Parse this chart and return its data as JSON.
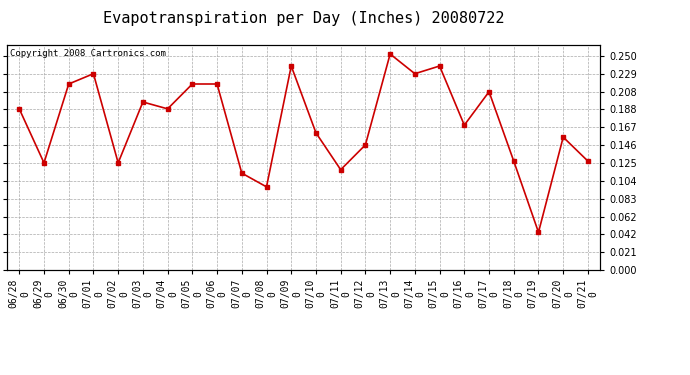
{
  "title": "Evapotranspiration per Day (Inches) 20080722",
  "copyright": "Copyright 2008 Cartronics.com",
  "dates": [
    "06/28",
    "06/29",
    "06/30",
    "07/01",
    "07/02",
    "07/03",
    "07/04",
    "07/05",
    "07/06",
    "07/07",
    "07/08",
    "07/09",
    "07/10",
    "07/11",
    "07/12",
    "07/13",
    "07/14",
    "07/15",
    "07/16",
    "07/17",
    "07/18",
    "07/19",
    "07/20",
    "07/21"
  ],
  "values": [
    0.188,
    0.125,
    0.217,
    0.229,
    0.125,
    0.196,
    0.188,
    0.217,
    0.217,
    0.113,
    0.097,
    0.238,
    0.16,
    0.117,
    0.146,
    0.252,
    0.229,
    0.238,
    0.169,
    0.208,
    0.127,
    0.044,
    0.155,
    0.127
  ],
  "line_color": "#cc0000",
  "marker": "s",
  "marker_size": 2.5,
  "background_color": "#ffffff",
  "grid_color": "#aaaaaa",
  "ylim": [
    0.0,
    0.2625
  ],
  "yticks": [
    0.0,
    0.021,
    0.042,
    0.062,
    0.083,
    0.104,
    0.125,
    0.146,
    0.167,
    0.188,
    0.208,
    0.229,
    0.25
  ],
  "title_fontsize": 11,
  "copyright_fontsize": 6.5,
  "tick_fontsize": 7,
  "figsize": [
    6.9,
    3.75
  ],
  "dpi": 100
}
